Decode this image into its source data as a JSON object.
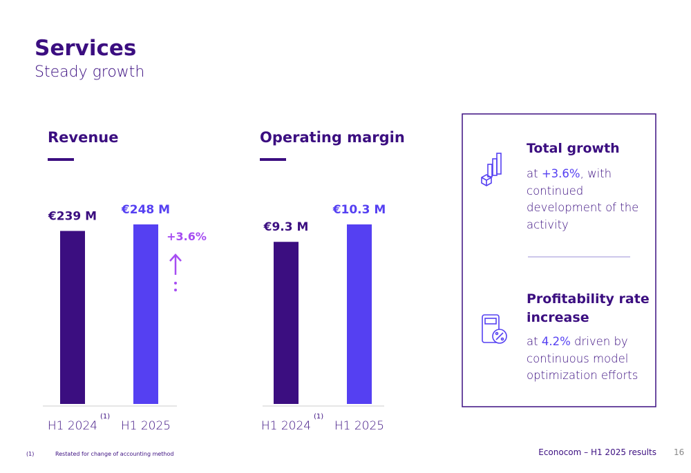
{
  "header": {
    "title": "Services",
    "subtitle": "Steady growth"
  },
  "chart_data": [
    {
      "type": "bar",
      "title": "Revenue",
      "categories": [
        "H1 2024",
        "H1 2025"
      ],
      "values": [
        239,
        248
      ],
      "value_labels": [
        "€239 M",
        "€248 M"
      ],
      "colors": [
        "#3b0e80",
        "#5540f2"
      ],
      "annotation": "+3.6%",
      "annotation_color": "#a64df2"
    },
    {
      "type": "bar",
      "title": "Operating margin",
      "categories": [
        "H1 2024",
        "H1 2025"
      ],
      "values": [
        9.3,
        10.3
      ],
      "value_labels": [
        "€9.3 M",
        "€10.3 M"
      ],
      "colors": [
        "#3b0e80",
        "#5540f2"
      ]
    }
  ],
  "panel": {
    "items": [
      {
        "title": "Total growth",
        "body": {
          "before": "at ",
          "highlight": "+3.6%",
          "after": ", with continued development of the activity"
        }
      },
      {
        "title": "Profitability rate increase",
        "body": {
          "before": "at ",
          "highlight": "4.2%",
          "after": " driven by continuous model optimization efforts"
        }
      }
    ]
  },
  "footnote": {
    "marker": "(1)",
    "text": "Restated for change of accounting method"
  },
  "footer": {
    "text": "Econocom – H1 2025 results",
    "page": "16"
  }
}
